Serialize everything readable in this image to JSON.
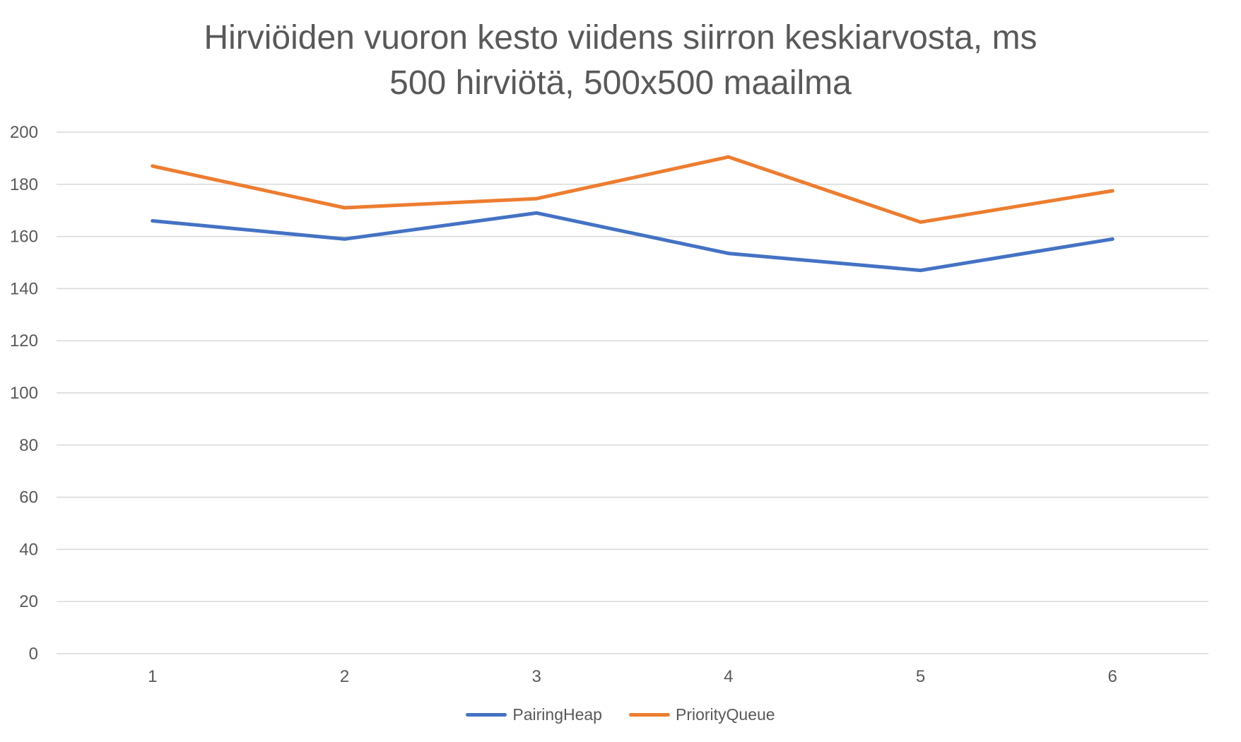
{
  "chart_data": {
    "type": "line",
    "title_lines": [
      "Hirviöiden vuoron kesto viidens siirron keskiarvosta, ms",
      "500 hirviötä, 500x500 maailma"
    ],
    "xlabel": "",
    "ylabel": "",
    "categories": [
      "1",
      "2",
      "3",
      "4",
      "5",
      "6"
    ],
    "y_ticks": [
      "0",
      "20",
      "40",
      "60",
      "80",
      "100",
      "120",
      "140",
      "160",
      "180",
      "200"
    ],
    "ylim": [
      0,
      200
    ],
    "grid": true,
    "legend_position": "bottom",
    "series": [
      {
        "name": "PairingHeap",
        "color": "#4472C4",
        "values": [
          166,
          159,
          169,
          153.5,
          147,
          159
        ]
      },
      {
        "name": "PriorityQueue",
        "color": "#ED7D31",
        "values": [
          187,
          171,
          174.5,
          190.5,
          165.5,
          177.5
        ]
      }
    ]
  }
}
